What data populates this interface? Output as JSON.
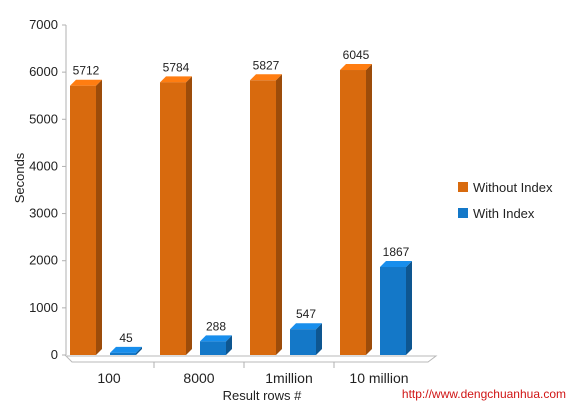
{
  "chart_data": {
    "type": "bar",
    "categories": [
      "100",
      "8000",
      "1million",
      "10 million"
    ],
    "series": [
      {
        "name": "Without Index",
        "values": [
          5712,
          5784,
          5827,
          6045
        ],
        "labels": [
          "5712",
          "5784",
          "5827",
          "6045"
        ],
        "color": "#d86a0e"
      },
      {
        "name": "With Index",
        "values": [
          45,
          288,
          547,
          1867
        ],
        "labels": [
          "45",
          "288",
          "547",
          "1867"
        ],
        "color": "#1478c8"
      }
    ],
    "title": "",
    "xlabel": "Result rows #",
    "ylabel": "Seconds",
    "ylim": [
      0,
      7000
    ],
    "yticks": [
      "0",
      "1000",
      "2000",
      "3000",
      "4000",
      "5000",
      "6000",
      "7000"
    ],
    "grid": false,
    "legend_position": "right",
    "style": "3d-bar"
  },
  "watermark": "http://www.dengchuanhua.com"
}
